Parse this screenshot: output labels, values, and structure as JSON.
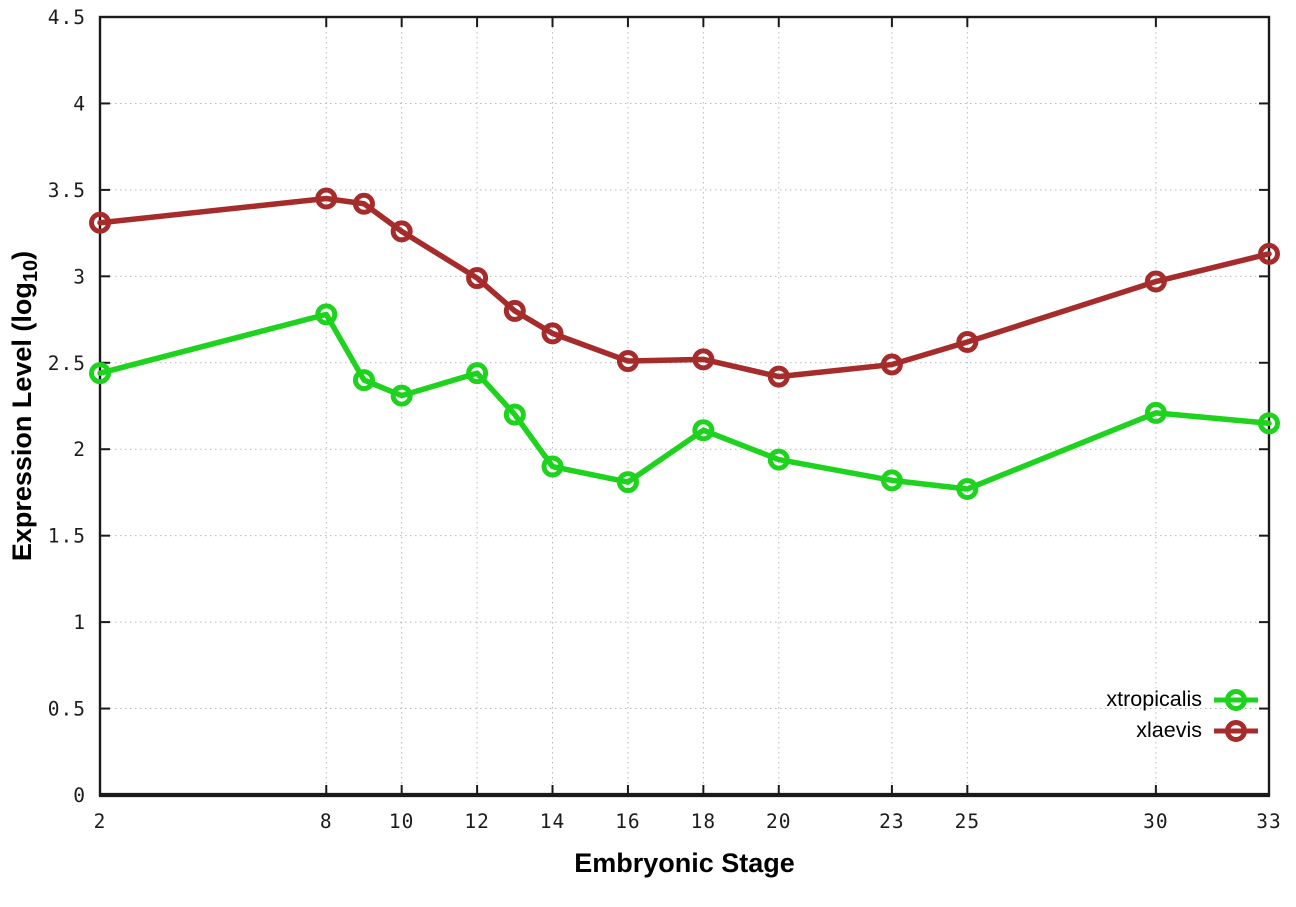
{
  "chart_data": {
    "type": "line",
    "title": "",
    "xlabel": "Embryonic Stage",
    "ylabel": {
      "pre": "Expression Level (log",
      "sub": "10",
      "post": ")"
    },
    "xlim": [
      2,
      33
    ],
    "ylim": [
      0,
      4.5
    ],
    "grid": true,
    "legend_position": "bottom-right-inside",
    "x": [
      2,
      8,
      9,
      10,
      12,
      13,
      14,
      16,
      18,
      20,
      23,
      25,
      30,
      33
    ],
    "x_ticks": [
      2,
      8,
      10,
      12,
      14,
      16,
      18,
      20,
      23,
      25,
      30,
      33
    ],
    "x_tick_labels": [
      "2",
      "8",
      "10",
      "12",
      "14",
      "16",
      "18",
      "20",
      "23",
      "25",
      "30",
      "33"
    ],
    "y_ticks": [
      0,
      0.5,
      1,
      1.5,
      2,
      2.5,
      3,
      3.5,
      4,
      4.5
    ],
    "y_tick_labels": [
      "0",
      "0.5",
      "1",
      "1.5",
      "2",
      "2.5",
      "3",
      "3.5",
      "4",
      "4.5"
    ],
    "marker": "open-circle",
    "series": [
      {
        "name": "xtropicalis",
        "color": "#1dd31d",
        "values": [
          2.44,
          2.78,
          2.4,
          2.31,
          2.44,
          2.2,
          1.9,
          1.81,
          2.11,
          1.94,
          1.82,
          1.77,
          2.21,
          2.15
        ]
      },
      {
        "name": "xlaevis",
        "color": "#a62c2c",
        "values": [
          3.31,
          3.45,
          3.42,
          3.26,
          2.99,
          2.8,
          2.67,
          2.51,
          2.52,
          2.42,
          2.49,
          2.62,
          2.97,
          3.13
        ]
      }
    ]
  }
}
